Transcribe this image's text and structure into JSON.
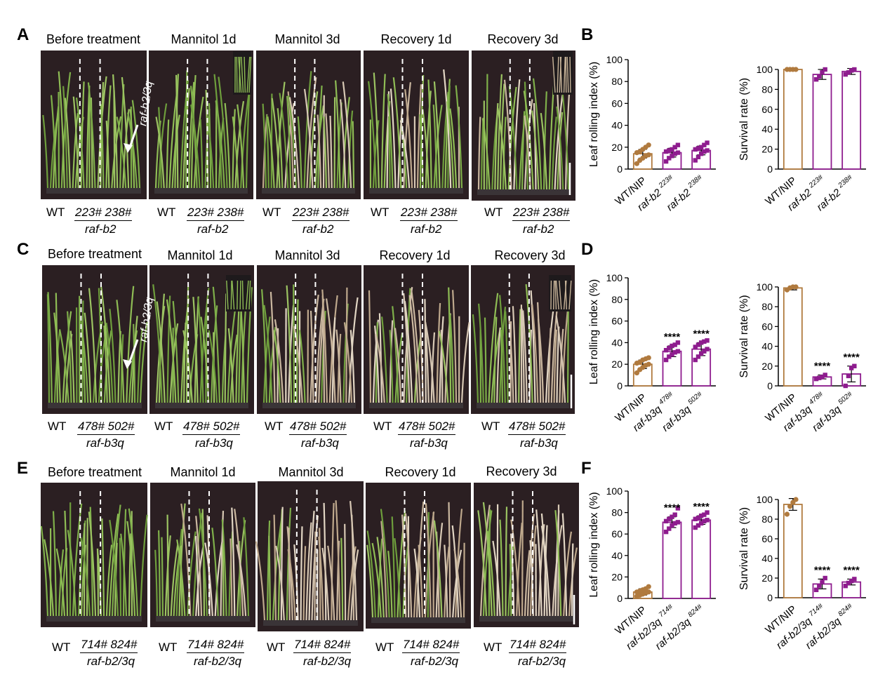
{
  "rows": [
    {
      "panel_label": "A",
      "titles": [
        "Before treatment",
        "Mannitol 1d",
        "Mannitol 3d",
        "Recovery 1d",
        "Recovery 3d"
      ],
      "annotation": "raf-b2/3q",
      "genotypes": {
        "wt": "WT",
        "ids": "223# 238#",
        "name": "raf-b2"
      }
    },
    {
      "panel_label": "C",
      "titles": [
        "Before treatment",
        "Mannitol 1d",
        "Mannitol 3d",
        "Recovery 1d",
        "Recovery 3d"
      ],
      "annotation": "raf-b2/3q",
      "genotypes": {
        "wt": "WT",
        "ids": "478# 502#",
        "name": "raf-b3q"
      }
    },
    {
      "panel_label": "E",
      "titles": [
        "Before treatment",
        "Mannitol 1d",
        "Mannitol 3d",
        "Recovery 1d",
        "Recovery 3d"
      ],
      "annotation": "",
      "genotypes": {
        "wt": "WT",
        "ids": "714# 824#",
        "name": "raf-b2/3q"
      }
    }
  ],
  "chart_data": [
    {
      "panel": "B",
      "type": "bar",
      "ylabel": "Leaf rolling index (%)",
      "ylim": [
        0,
        100
      ],
      "yticks": [
        0,
        20,
        40,
        60,
        80,
        100
      ],
      "categories": [
        {
          "base": "WT/NIP",
          "sup": ""
        },
        {
          "base": "raf-b2 ",
          "sup": "223#"
        },
        {
          "base": "raf-b2 ",
          "sup": "238#"
        }
      ],
      "values": [
        14,
        15,
        17
      ],
      "errors": [
        4,
        4,
        4
      ],
      "points": [
        [
          5,
          8,
          10,
          12,
          13,
          15,
          16,
          18,
          20,
          22
        ],
        [
          7,
          10,
          12,
          14,
          15,
          16,
          17,
          18,
          20,
          22
        ],
        [
          8,
          11,
          14,
          16,
          17,
          18,
          19,
          20,
          22,
          24
        ]
      ],
      "significance": [
        "",
        "",
        ""
      ],
      "colors": [
        "#b07a3e",
        "#8e1c8e",
        "#8e1c8e"
      ]
    },
    {
      "panel": "B",
      "type": "bar",
      "ylabel": "Survival rate (%)",
      "ylim": [
        0,
        100
      ],
      "yticks": [
        0,
        20,
        40,
        60,
        80,
        100
      ],
      "categories": [
        {
          "base": "WT/NIP",
          "sup": ""
        },
        {
          "base": "raf-b2 ",
          "sup": "223#"
        },
        {
          "base": "raf-b2 ",
          "sup": "238#"
        }
      ],
      "values": [
        100,
        95,
        98
      ],
      "errors": [
        0,
        5,
        3
      ],
      "points": [
        [
          100,
          100,
          100,
          100
        ],
        [
          90,
          93,
          97,
          100
        ],
        [
          95,
          97,
          99,
          100
        ]
      ],
      "significance": [
        "",
        "",
        ""
      ],
      "colors": [
        "#b07a3e",
        "#8e1c8e",
        "#8e1c8e"
      ]
    },
    {
      "panel": "D",
      "type": "bar",
      "ylabel": "Leaf rolling index (%)",
      "ylim": [
        0,
        100
      ],
      "yticks": [
        0,
        20,
        40,
        60,
        80,
        100
      ],
      "categories": [
        {
          "base": "WT/NIP",
          "sup": ""
        },
        {
          "base": "raf-b3q ",
          "sup": "478#"
        },
        {
          "base": "raf-b3q ",
          "sup": "502#"
        }
      ],
      "values": [
        20,
        32,
        34
      ],
      "errors": [
        4,
        5,
        6
      ],
      "points": [
        [
          12,
          15,
          17,
          19,
          20,
          21,
          22,
          24,
          25,
          26
        ],
        [
          24,
          27,
          29,
          31,
          32,
          33,
          35,
          37,
          38,
          40
        ],
        [
          24,
          27,
          30,
          32,
          34,
          36,
          38,
          40,
          41,
          42
        ]
      ],
      "significance": [
        "",
        "****",
        "****"
      ],
      "colors": [
        "#b07a3e",
        "#8e1c8e",
        "#8e1c8e"
      ]
    },
    {
      "panel": "D",
      "type": "bar",
      "ylabel": "Survival rate (%)",
      "ylim": [
        0,
        100
      ],
      "yticks": [
        0,
        20,
        40,
        60,
        80,
        100
      ],
      "categories": [
        {
          "base": "WT/NIP",
          "sup": ""
        },
        {
          "base": "raf-b3q ",
          "sup": "478#"
        },
        {
          "base": "raf-b3q ",
          "sup": "502#"
        }
      ],
      "values": [
        99,
        9,
        12
      ],
      "errors": [
        2,
        2,
        8
      ],
      "points": [
        [
          97,
          99,
          100,
          100
        ],
        [
          7,
          8,
          9,
          11
        ],
        [
          0,
          10,
          18,
          20
        ]
      ],
      "significance": [
        "",
        "****",
        "****"
      ],
      "colors": [
        "#b07a3e",
        "#8e1c8e",
        "#8e1c8e"
      ]
    },
    {
      "panel": "F",
      "type": "bar",
      "ylabel": "Leaf rolling index (%)",
      "ylim": [
        0,
        100
      ],
      "yticks": [
        0,
        20,
        40,
        60,
        80,
        100
      ],
      "categories": [
        {
          "base": "WT/NIP",
          "sup": ""
        },
        {
          "base": "raf-b2/3q ",
          "sup": "714#"
        },
        {
          "base": "raf-b2/3q ",
          "sup": "824#"
        }
      ],
      "values": [
        6,
        71,
        73
      ],
      "errors": [
        3,
        5,
        4
      ],
      "points": [
        [
          2,
          3,
          4,
          5,
          6,
          6,
          7,
          8,
          9,
          11
        ],
        [
          62,
          65,
          68,
          70,
          71,
          72,
          74,
          76,
          78,
          84
        ],
        [
          66,
          68,
          70,
          72,
          73,
          74,
          75,
          77,
          78,
          80
        ]
      ],
      "significance": [
        "",
        "****",
        "****"
      ],
      "colors": [
        "#b07a3e",
        "#8e1c8e",
        "#8e1c8e"
      ]
    },
    {
      "panel": "F",
      "type": "bar",
      "ylabel": "Survival rate (%)",
      "ylim": [
        0,
        100
      ],
      "yticks": [
        0,
        20,
        40,
        60,
        80,
        100
      ],
      "categories": [
        {
          "base": "WT/NIP",
          "sup": ""
        },
        {
          "base": "raf-b2/3q ",
          "sup": "714#"
        },
        {
          "base": "raf-b2/3q ",
          "sup": "824#"
        }
      ],
      "values": [
        95,
        14,
        16
      ],
      "errors": [
        6,
        5,
        3
      ],
      "points": [
        [
          85,
          93,
          97,
          100
        ],
        [
          8,
          12,
          16,
          20
        ],
        [
          12,
          15,
          17,
          19
        ]
      ],
      "significance": [
        "",
        "****",
        "****"
      ],
      "colors": [
        "#b07a3e",
        "#8e1c8e",
        "#8e1c8e"
      ]
    }
  ],
  "chart_panel_labels": [
    "B",
    "D",
    "F"
  ]
}
